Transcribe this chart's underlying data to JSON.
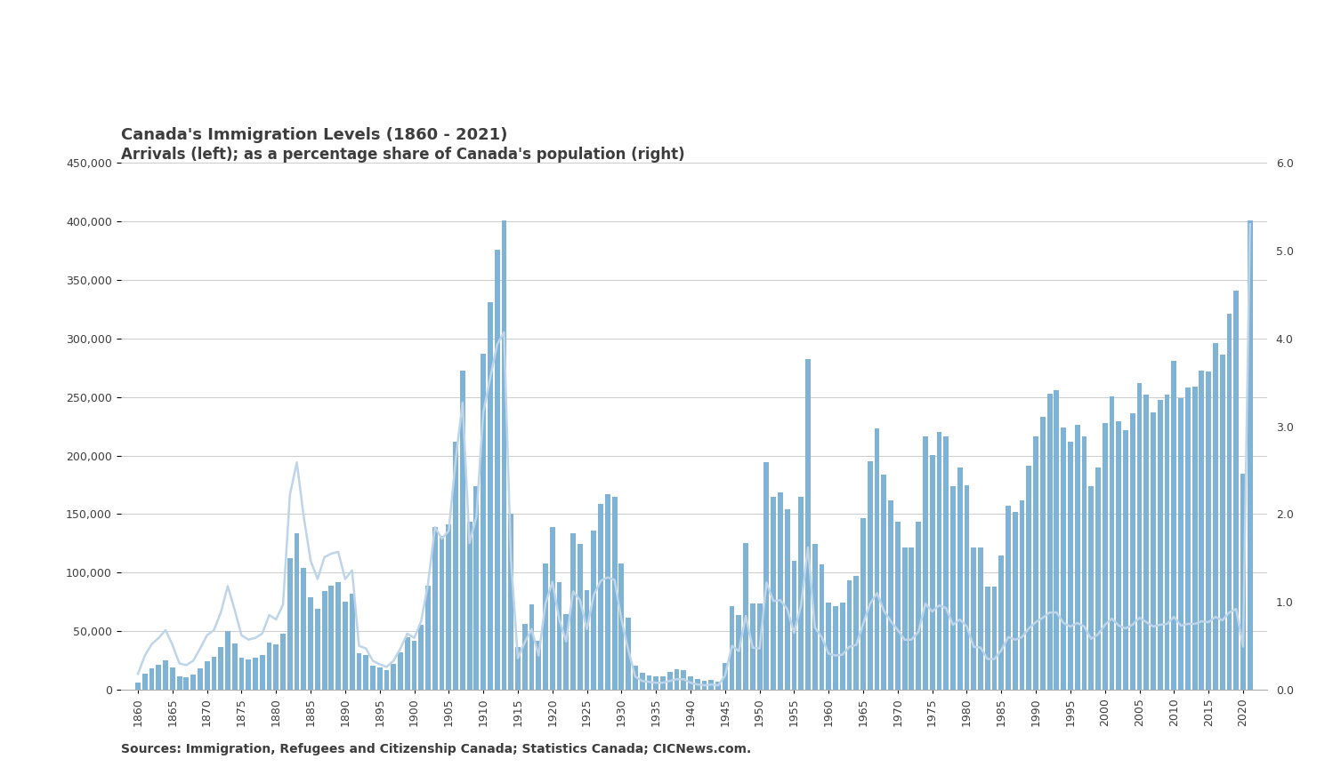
{
  "title1": "Canada's Immigration Levels (1860 - 2021)",
  "title2": "Arrivals (left); as a percentage share of Canada's population (right)",
  "source_text": "Sources: Immigration, Refugees and Citizenship Canada; Statistics Canada; CICNews.com.",
  "bar_color": "#7fb3d6",
  "line_color": "#bed4e8",
  "years": [
    1860,
    1861,
    1862,
    1863,
    1864,
    1865,
    1866,
    1867,
    1868,
    1869,
    1870,
    1871,
    1872,
    1873,
    1874,
    1875,
    1876,
    1877,
    1878,
    1879,
    1880,
    1881,
    1882,
    1883,
    1884,
    1885,
    1886,
    1887,
    1888,
    1889,
    1890,
    1891,
    1892,
    1893,
    1894,
    1895,
    1896,
    1897,
    1898,
    1899,
    1900,
    1901,
    1902,
    1903,
    1904,
    1905,
    1906,
    1907,
    1908,
    1909,
    1910,
    1911,
    1912,
    1913,
    1914,
    1915,
    1916,
    1917,
    1918,
    1919,
    1920,
    1921,
    1922,
    1923,
    1924,
    1925,
    1926,
    1927,
    1928,
    1929,
    1930,
    1931,
    1932,
    1933,
    1934,
    1935,
    1936,
    1937,
    1938,
    1939,
    1940,
    1941,
    1942,
    1943,
    1944,
    1945,
    1946,
    1947,
    1948,
    1949,
    1950,
    1951,
    1952,
    1953,
    1954,
    1955,
    1956,
    1957,
    1958,
    1959,
    1960,
    1961,
    1962,
    1963,
    1964,
    1965,
    1966,
    1967,
    1968,
    1969,
    1970,
    1971,
    1972,
    1973,
    1974,
    1975,
    1976,
    1977,
    1978,
    1979,
    1980,
    1981,
    1982,
    1983,
    1984,
    1985,
    1986,
    1987,
    1988,
    1989,
    1990,
    1991,
    1992,
    1993,
    1994,
    1995,
    1996,
    1997,
    1998,
    1999,
    2000,
    2001,
    2002,
    2003,
    2004,
    2005,
    2006,
    2007,
    2008,
    2009,
    2010,
    2011,
    2012,
    2013,
    2014,
    2015,
    2016,
    2017,
    2018,
    2019,
    2020,
    2021
  ],
  "arrivals": [
    6276,
    13589,
    18294,
    21000,
    24779,
    18958,
    11427,
    10666,
    12765,
    18630,
    24706,
    27773,
    36578,
    50050,
    39373,
    27382,
    25633,
    27082,
    29807,
    40492,
    38505,
    47991,
    112458,
    133624,
    103824,
    79169,
    69152,
    84526,
    88766,
    91600,
    75067,
    82165,
    30996,
    29633,
    20829,
    18790,
    16835,
    21716,
    31900,
    44543,
    41681,
    55747,
    89102,
    138660,
    131252,
    141465,
    211653,
    272409,
    143326,
    173694,
    286839,
    331288,
    375756,
    400870,
    150484,
    36665,
    55914,
    72910,
    41845,
    107698,
    138824,
    91728,
    64224,
    133729,
    124164,
    84907,
    135982,
    158886,
    166783,
    164993,
    107698,
    61576,
    20591,
    14158,
    12476,
    11277,
    11643,
    15101,
    17244,
    16994,
    11324,
    9329,
    7576,
    8504,
    6952,
    22722,
    71719,
    64127,
    125414,
    73912,
    73912,
    194391,
    164498,
    168868,
    154227,
    109946,
    164857,
    282164,
    124851,
    106928,
    74586,
    71689,
    74586,
    93151,
    97510,
    146758,
    194743,
    222876,
    183974,
    161531,
    143117,
    121147,
    121147,
    143117,
    216461,
    200187,
    220241,
    216307,
    174159,
    189976,
    174448,
    121147,
    121389,
    87902,
    88239,
    114914,
    157272,
    152098,
    161929,
    191490,
    216346,
    232743,
    252842,
    255819,
    223875,
    212166,
    226071,
    216011,
    174159,
    189976,
    227455,
    250640,
    229091,
    221352,
    235824,
    262236,
    251649,
    236754,
    247243,
    252124,
    280691,
    248748,
    257887,
    259024,
    272707,
    271845,
    296346,
    286479,
    321069,
    341180,
    184370,
    401000
  ],
  "pct_pop": [
    0.18,
    0.39,
    0.52,
    0.59,
    0.68,
    0.51,
    0.3,
    0.28,
    0.33,
    0.47,
    0.62,
    0.68,
    0.88,
    1.18,
    0.91,
    0.62,
    0.57,
    0.59,
    0.64,
    0.85,
    0.8,
    0.97,
    2.22,
    2.59,
    1.97,
    1.47,
    1.26,
    1.51,
    1.55,
    1.57,
    1.26,
    1.36,
    0.5,
    0.47,
    0.33,
    0.29,
    0.26,
    0.33,
    0.47,
    0.64,
    0.59,
    0.78,
    1.21,
    1.85,
    1.72,
    1.81,
    2.62,
    3.27,
    1.67,
    1.97,
    3.16,
    3.55,
    3.93,
    4.07,
    1.49,
    0.36,
    0.54,
    0.69,
    0.39,
    0.98,
    1.23,
    0.8,
    0.55,
    1.12,
    1.02,
    0.69,
    1.08,
    1.24,
    1.28,
    1.25,
    0.8,
    0.45,
    0.15,
    0.1,
    0.09,
    0.08,
    0.08,
    0.1,
    0.12,
    0.12,
    0.08,
    0.06,
    0.05,
    0.06,
    0.05,
    0.16,
    0.5,
    0.44,
    0.84,
    0.48,
    0.47,
    1.22,
    1.01,
    1.02,
    0.92,
    0.65,
    0.96,
    1.62,
    0.71,
    0.6,
    0.41,
    0.39,
    0.4,
    0.49,
    0.51,
    0.75,
    0.98,
    1.1,
    0.9,
    0.78,
    0.68,
    0.57,
    0.57,
    0.66,
    0.98,
    0.89,
    0.96,
    0.93,
    0.74,
    0.8,
    0.72,
    0.49,
    0.48,
    0.35,
    0.35,
    0.45,
    0.6,
    0.57,
    0.6,
    0.7,
    0.77,
    0.82,
    0.88,
    0.88,
    0.76,
    0.72,
    0.76,
    0.72,
    0.58,
    0.63,
    0.74,
    0.81,
    0.73,
    0.7,
    0.74,
    0.82,
    0.77,
    0.72,
    0.74,
    0.75,
    0.83,
    0.73,
    0.75,
    0.75,
    0.78,
    0.77,
    0.83,
    0.79,
    0.88,
    0.92,
    0.49,
    5.3
  ],
  "ylim_left": [
    0,
    450000
  ],
  "ylim_right": [
    0,
    6.0
  ],
  "xlim": [
    1857.5,
    2023.5
  ],
  "title_fontsize": 13,
  "subtitle_fontsize": 12,
  "tick_fontsize": 9,
  "source_fontsize": 10,
  "title_color": "#3d3d3d",
  "tick_color": "#3d3d3d",
  "grid_color": "#cccccc",
  "background_color": "#ffffff"
}
